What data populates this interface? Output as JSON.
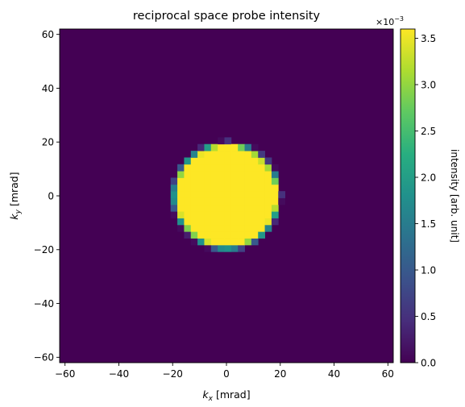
{
  "chart_data": {
    "type": "heatmap",
    "title": "reciprocal space probe intensity",
    "xlabel": {
      "symbol": "k",
      "sub": "x",
      "unit": " [mrad]"
    },
    "ylabel": {
      "symbol": "k",
      "sub": "y",
      "unit": " [mrad]"
    },
    "xlim": [
      -62,
      62
    ],
    "ylim": [
      -62,
      62
    ],
    "x_ticks": [
      -60,
      -40,
      -20,
      0,
      20,
      40,
      60
    ],
    "x_tick_labels": [
      "−60",
      "−40",
      "−20",
      "0",
      "20",
      "40",
      "60"
    ],
    "y_ticks": [
      -60,
      -40,
      -20,
      0,
      20,
      40,
      60
    ],
    "y_tick_labels": [
      "−60",
      "−40",
      "−20",
      "0",
      "20",
      "40",
      "60"
    ],
    "grid": false,
    "colormap": "viridis",
    "colorbar": {
      "label": "intensity [arb. unit]",
      "range": [
        0,
        3.6
      ],
      "ticks": [
        0.0,
        0.5,
        1.0,
        1.5,
        2.0,
        2.5,
        3.0,
        3.5
      ],
      "tick_labels": [
        "0.0",
        "0.5",
        "1.0",
        "1.5",
        "2.0",
        "2.5",
        "3.0",
        "3.5"
      ],
      "multiplier_base": "×10",
      "multiplier_exp": "−3"
    },
    "pixel_size_mrad": 2.5,
    "aperture_radius_mrad": 19.5,
    "max_intensity": 3.6
  },
  "colors": {
    "low": "#440154",
    "high": "#fde725"
  }
}
